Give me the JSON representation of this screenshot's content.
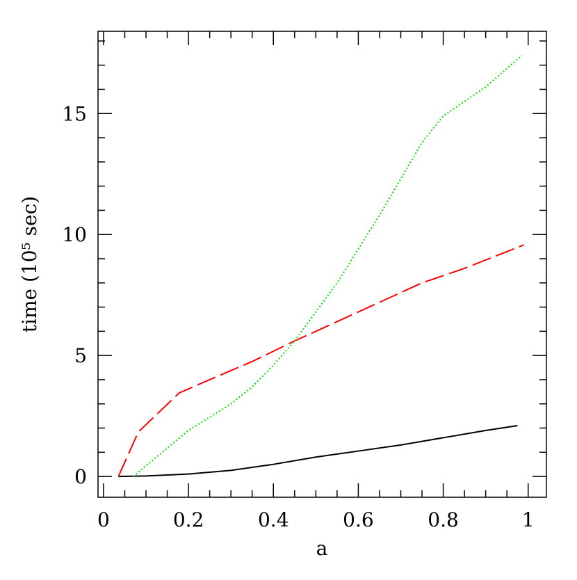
{
  "chart_data": {
    "type": "line",
    "x_label": "a",
    "y_label": "time (10⁵ sec)",
    "xlim": [
      -0.013,
      1.043
    ],
    "ylim": [
      -0.86,
      18.4
    ],
    "xticks": [
      0,
      0.2,
      0.4,
      0.6,
      0.8,
      1
    ],
    "yticks": [
      0,
      5,
      10,
      15
    ],
    "xminorticks": [
      0.05,
      0.1,
      0.15,
      0.25,
      0.3,
      0.35,
      0.45,
      0.5,
      0.55,
      0.65,
      0.7,
      0.75,
      0.85,
      0.9,
      0.95,
      1.05
    ],
    "yminorticks": [
      1,
      2,
      3,
      4,
      6,
      7,
      8,
      9,
      11,
      12,
      13,
      14,
      16,
      17,
      18
    ],
    "series": [
      {
        "color": "#000000",
        "dash": "solid",
        "x": [
          0.035,
          0.1,
          0.2,
          0.3,
          0.4,
          0.5,
          0.6,
          0.7,
          0.8,
          0.9,
          0.975
        ],
        "values": [
          0,
          0.02,
          0.1,
          0.25,
          0.5,
          0.8,
          1.05,
          1.3,
          1.6,
          1.9,
          2.1
        ]
      },
      {
        "color": "#ff0000",
        "dash": "dashed",
        "x": [
          0.035,
          0.082,
          0.178,
          0.25,
          0.35,
          0.45,
          0.55,
          0.65,
          0.75,
          0.85,
          0.99
        ],
        "values": [
          0,
          1.84,
          3.45,
          4.0,
          4.75,
          5.6,
          6.4,
          7.2,
          8.0,
          8.6,
          9.57
        ]
      },
      {
        "color": "#00dd00",
        "dash": "dotted",
        "x": [
          0.07,
          0.2,
          0.3,
          0.35,
          0.4,
          0.45,
          0.5,
          0.55,
          0.6,
          0.65,
          0.7,
          0.75,
          0.8,
          0.9,
          0.985
        ],
        "values": [
          0,
          1.9,
          3.0,
          3.7,
          4.6,
          5.6,
          6.8,
          8.0,
          9.4,
          10.8,
          12.3,
          13.8,
          14.9,
          16.1,
          17.4
        ]
      }
    ]
  }
}
